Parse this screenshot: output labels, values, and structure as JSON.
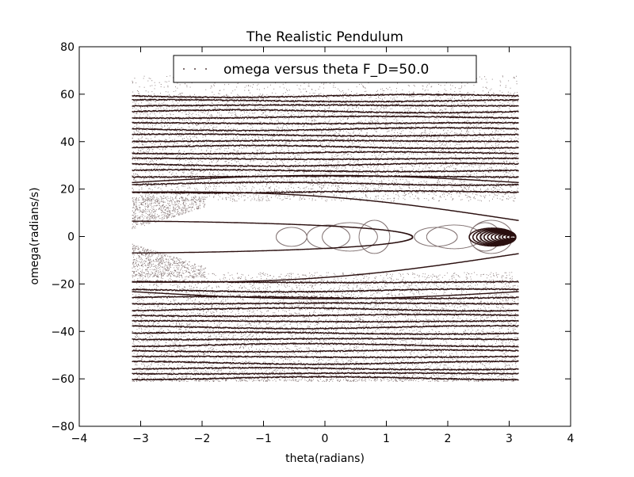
{
  "chart_data": {
    "type": "scatter",
    "title": "The Realistic Pendulum",
    "xlabel": "theta(radians)",
    "ylabel": "omega(radians/s)",
    "xlim": [
      -4,
      4
    ],
    "ylim": [
      -80,
      80
    ],
    "xticks": [
      -4,
      -3,
      -2,
      -1,
      0,
      1,
      2,
      3,
      4
    ],
    "xtick_labels": [
      "−4",
      "−3",
      "−2",
      "−1",
      "0",
      "1",
      "2",
      "3",
      "4"
    ],
    "yticks": [
      -80,
      -60,
      -40,
      -20,
      0,
      20,
      40,
      60,
      80
    ],
    "ytick_labels": [
      "−80",
      "−60",
      "−40",
      "−20",
      "0",
      "20",
      "40",
      "60",
      "80"
    ],
    "grid": false,
    "legend_position": "top-center",
    "series": [
      {
        "name": "omega versus theta  F_D=50.0",
        "color": "#2a0f0f",
        "marker": "point",
        "x_range": [
          -3.14159,
          3.14159
        ],
        "omega_max": 60,
        "bands_omega": [
          59.5,
          57.5,
          55.5,
          53,
          50.5,
          48,
          45.5,
          43,
          40.5,
          38,
          35.5,
          33,
          30.5,
          28,
          25.5,
          22.5,
          19,
          -19,
          -22.5,
          -25.5,
          -28,
          -30.5,
          -33,
          -35.5,
          -38,
          -40.5,
          -43,
          -45.5,
          -48,
          -50.5,
          -53,
          -55.5,
          -57.5,
          -59.5
        ],
        "separatrix_omega_max": 15,
        "loop_theta_max": 1.42,
        "inner_loops_theta": [
          -0.3,
          0.4,
          0.85,
          1.05
        ],
        "right_loops_theta": [
          2.15,
          2.55,
          2.85,
          3.05
        ]
      }
    ]
  }
}
